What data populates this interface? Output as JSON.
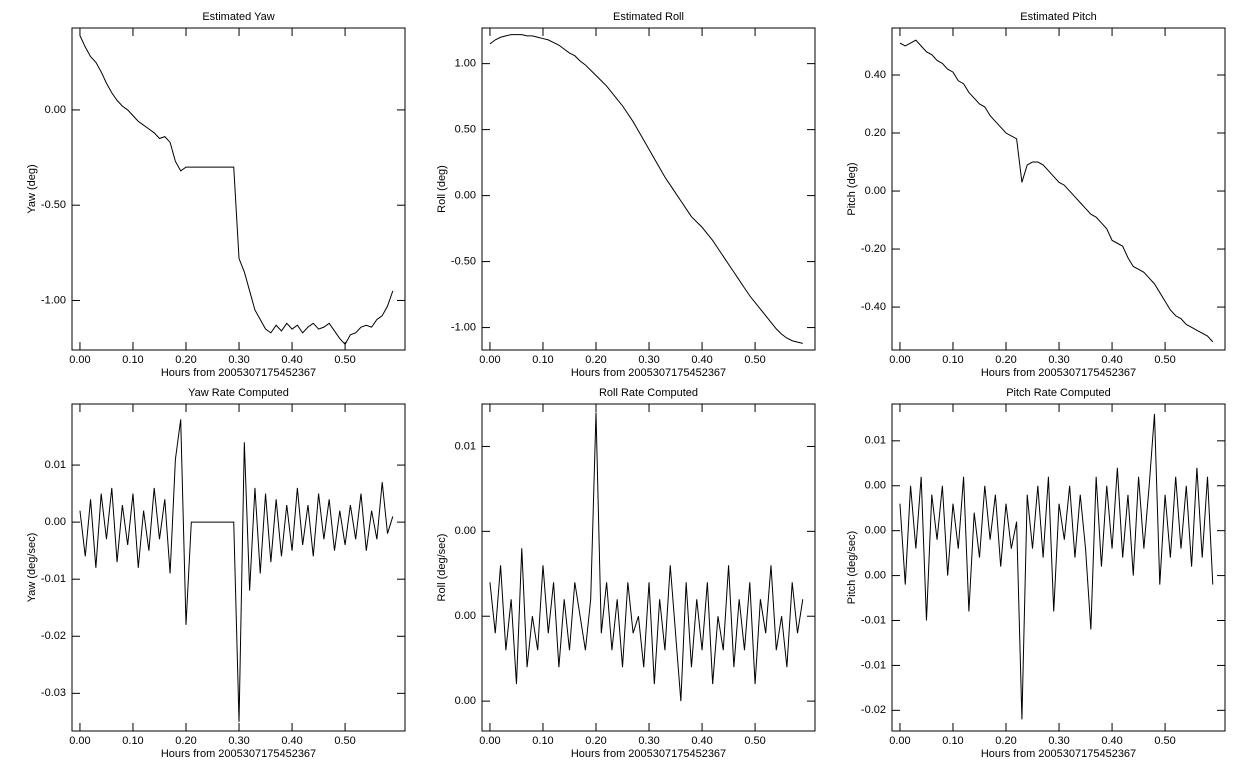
{
  "chart_data": [
    {
      "type": "line",
      "title": "Estimated Yaw",
      "x_label": "Hours from 2005307175452367",
      "y_label": "Yaw (deg)",
      "color": "#000000",
      "xlim": [
        -0.015,
        0.613
      ],
      "ylim": [
        -1.26,
        0.43
      ],
      "xticks": [
        {
          "value": 0,
          "label": "0.00"
        },
        {
          "value": 0.1,
          "label": "0.10"
        },
        {
          "value": 0.2,
          "label": "0.20"
        },
        {
          "value": 0.3,
          "label": "0.30"
        },
        {
          "value": 0.4,
          "label": "0.40"
        },
        {
          "value": 0.5,
          "label": "0.50"
        }
      ],
      "yticks": [
        {
          "value": 0,
          "label": "0.00"
        },
        {
          "value": -0.5,
          "label": "-0.50"
        },
        {
          "value": -1,
          "label": "-1.00"
        }
      ],
      "x": [
        0,
        0.01,
        0.02,
        0.03,
        0.04,
        0.05,
        0.06,
        0.07,
        0.08,
        0.09,
        0.1,
        0.11,
        0.12,
        0.13,
        0.14,
        0.15,
        0.16,
        0.17,
        0.18,
        0.19,
        0.2,
        0.21,
        0.22,
        0.23,
        0.24,
        0.25,
        0.26,
        0.27,
        0.28,
        0.29,
        0.3,
        0.31,
        0.32,
        0.33,
        0.34,
        0.35,
        0.36,
        0.37,
        0.38,
        0.39,
        0.4,
        0.41,
        0.42,
        0.43,
        0.44,
        0.45,
        0.46,
        0.47,
        0.48,
        0.49,
        0.5,
        0.51,
        0.52,
        0.53,
        0.54,
        0.55,
        0.56,
        0.57,
        0.58,
        0.59
      ],
      "values": [
        0.39,
        0.33,
        0.28,
        0.25,
        0.2,
        0.14,
        0.09,
        0.05,
        0.02,
        0.0,
        -0.03,
        -0.06,
        -0.08,
        -0.1,
        -0.12,
        -0.15,
        -0.14,
        -0.17,
        -0.27,
        -0.32,
        -0.3,
        -0.3,
        -0.3,
        -0.3,
        -0.3,
        -0.3,
        -0.3,
        -0.3,
        -0.3,
        -0.3,
        -0.78,
        -0.85,
        -0.95,
        -1.05,
        -1.1,
        -1.15,
        -1.17,
        -1.13,
        -1.16,
        -1.12,
        -1.15,
        -1.13,
        -1.17,
        -1.14,
        -1.12,
        -1.15,
        -1.14,
        -1.12,
        -1.16,
        -1.2,
        -1.23,
        -1.18,
        -1.17,
        -1.14,
        -1.13,
        -1.14,
        -1.1,
        -1.08,
        -1.03,
        -0.95
      ]
    },
    {
      "type": "line",
      "title": "Estimated Roll",
      "x_label": "Hours from 2005307175452367",
      "y_label": "Roll (deg)",
      "color": "#000000",
      "xlim": [
        -0.015,
        0.613
      ],
      "ylim": [
        -1.17,
        1.27
      ],
      "xticks": [
        {
          "value": 0,
          "label": "0.00"
        },
        {
          "value": 0.1,
          "label": "0.10"
        },
        {
          "value": 0.2,
          "label": "0.20"
        },
        {
          "value": 0.3,
          "label": "0.30"
        },
        {
          "value": 0.4,
          "label": "0.40"
        },
        {
          "value": 0.5,
          "label": "0.50"
        }
      ],
      "yticks": [
        {
          "value": 1,
          "label": "1.00"
        },
        {
          "value": 0.5,
          "label": "0.50"
        },
        {
          "value": 0,
          "label": "0.00"
        },
        {
          "value": -0.5,
          "label": "-0.50"
        },
        {
          "value": -1,
          "label": "-1.00"
        }
      ],
      "x": [
        0,
        0.01,
        0.02,
        0.03,
        0.04,
        0.05,
        0.06,
        0.07,
        0.08,
        0.09,
        0.1,
        0.11,
        0.12,
        0.13,
        0.14,
        0.15,
        0.16,
        0.17,
        0.18,
        0.19,
        0.2,
        0.21,
        0.22,
        0.23,
        0.24,
        0.25,
        0.26,
        0.27,
        0.28,
        0.29,
        0.3,
        0.31,
        0.32,
        0.33,
        0.34,
        0.35,
        0.36,
        0.37,
        0.38,
        0.39,
        0.4,
        0.41,
        0.42,
        0.43,
        0.44,
        0.45,
        0.46,
        0.47,
        0.48,
        0.49,
        0.5,
        0.51,
        0.52,
        0.53,
        0.54,
        0.55,
        0.56,
        0.57,
        0.58,
        0.59
      ],
      "values": [
        1.15,
        1.18,
        1.2,
        1.21,
        1.22,
        1.22,
        1.22,
        1.21,
        1.21,
        1.2,
        1.19,
        1.18,
        1.16,
        1.14,
        1.11,
        1.08,
        1.06,
        1.02,
        0.99,
        0.95,
        0.91,
        0.87,
        0.83,
        0.78,
        0.73,
        0.68,
        0.62,
        0.56,
        0.49,
        0.42,
        0.35,
        0.28,
        0.21,
        0.14,
        0.08,
        0.02,
        -0.04,
        -0.1,
        -0.16,
        -0.2,
        -0.24,
        -0.29,
        -0.34,
        -0.4,
        -0.46,
        -0.52,
        -0.58,
        -0.64,
        -0.7,
        -0.76,
        -0.81,
        -0.86,
        -0.91,
        -0.96,
        -1.01,
        -1.05,
        -1.08,
        -1.1,
        -1.11,
        -1.12
      ]
    },
    {
      "type": "line",
      "title": "Estimated Pitch",
      "x_label": "Hours from 2005307175452367",
      "y_label": "Pitch (deg)",
      "color": "#000000",
      "xlim": [
        -0.015,
        0.613
      ],
      "ylim": [
        -0.548,
        0.562
      ],
      "xticks": [
        {
          "value": 0,
          "label": "0.00"
        },
        {
          "value": 0.1,
          "label": "0.10"
        },
        {
          "value": 0.2,
          "label": "0.20"
        },
        {
          "value": 0.3,
          "label": "0.30"
        },
        {
          "value": 0.4,
          "label": "0.40"
        },
        {
          "value": 0.5,
          "label": "0.50"
        }
      ],
      "yticks": [
        {
          "value": 0.4,
          "label": "0.40"
        },
        {
          "value": 0.2,
          "label": "0.20"
        },
        {
          "value": 0,
          "label": "0.00"
        },
        {
          "value": -0.2,
          "label": "-0.20"
        },
        {
          "value": -0.4,
          "label": "-0.40"
        }
      ],
      "x": [
        0,
        0.01,
        0.02,
        0.03,
        0.04,
        0.05,
        0.06,
        0.07,
        0.08,
        0.09,
        0.1,
        0.11,
        0.12,
        0.13,
        0.14,
        0.15,
        0.16,
        0.17,
        0.18,
        0.19,
        0.2,
        0.21,
        0.22,
        0.23,
        0.24,
        0.25,
        0.26,
        0.27,
        0.28,
        0.29,
        0.3,
        0.31,
        0.32,
        0.33,
        0.34,
        0.35,
        0.36,
        0.37,
        0.38,
        0.39,
        0.4,
        0.41,
        0.42,
        0.43,
        0.44,
        0.45,
        0.46,
        0.47,
        0.48,
        0.49,
        0.5,
        0.51,
        0.52,
        0.53,
        0.54,
        0.55,
        0.56,
        0.57,
        0.58,
        0.59
      ],
      "values": [
        0.51,
        0.5,
        0.51,
        0.52,
        0.5,
        0.48,
        0.47,
        0.45,
        0.44,
        0.42,
        0.41,
        0.38,
        0.37,
        0.34,
        0.32,
        0.3,
        0.29,
        0.26,
        0.24,
        0.22,
        0.2,
        0.19,
        0.18,
        0.03,
        0.09,
        0.1,
        0.1,
        0.09,
        0.07,
        0.05,
        0.03,
        0.02,
        0.0,
        -0.02,
        -0.04,
        -0.06,
        -0.08,
        -0.09,
        -0.11,
        -0.13,
        -0.17,
        -0.18,
        -0.19,
        -0.23,
        -0.26,
        -0.27,
        -0.28,
        -0.3,
        -0.32,
        -0.35,
        -0.38,
        -0.41,
        -0.43,
        -0.44,
        -0.46,
        -0.47,
        -0.48,
        -0.49,
        -0.5,
        -0.52
      ]
    },
    {
      "type": "line",
      "title": "Yaw Rate Computed",
      "x_label": "Hours from 2005307175452367",
      "y_label": "Yaw (deg/sec)",
      "color": "#000000",
      "xlim": [
        -0.015,
        0.613
      ],
      "ylim": [
        -0.0366,
        0.0207
      ],
      "xticks": [
        {
          "value": 0,
          "label": "0.00"
        },
        {
          "value": 0.1,
          "label": "0.10"
        },
        {
          "value": 0.2,
          "label": "0.20"
        },
        {
          "value": 0.3,
          "label": "0.30"
        },
        {
          "value": 0.4,
          "label": "0.40"
        },
        {
          "value": 0.5,
          "label": "0.50"
        }
      ],
      "yticks": [
        0.01,
        {
          "value": 0,
          "label": "0.00"
        },
        -0.01,
        -0.02,
        -0.03
      ],
      "x": [
        0,
        0.01,
        0.02,
        0.03,
        0.04,
        0.05,
        0.06,
        0.07,
        0.08,
        0.09,
        0.1,
        0.11,
        0.12,
        0.13,
        0.14,
        0.15,
        0.16,
        0.17,
        0.18,
        0.19,
        0.2,
        0.21,
        0.22,
        0.23,
        0.24,
        0.25,
        0.26,
        0.27,
        0.28,
        0.29,
        0.3,
        0.31,
        0.32,
        0.33,
        0.34,
        0.35,
        0.36,
        0.37,
        0.38,
        0.39,
        0.4,
        0.41,
        0.42,
        0.43,
        0.44,
        0.45,
        0.46,
        0.47,
        0.48,
        0.49,
        0.5,
        0.51,
        0.52,
        0.53,
        0.54,
        0.55,
        0.56,
        0.57,
        0.58,
        0.59
      ],
      "values": [
        0.002,
        -0.006,
        0.004,
        -0.008,
        0.005,
        -0.003,
        0.006,
        -0.007,
        0.003,
        -0.004,
        0.005,
        -0.008,
        0.002,
        -0.005,
        0.006,
        -0.003,
        0.004,
        -0.009,
        0.011,
        0.018,
        -0.018,
        0,
        0,
        0,
        0,
        0,
        0,
        0,
        0,
        0,
        -0.035,
        0.014,
        -0.012,
        0.006,
        -0.009,
        0.005,
        -0.007,
        0.004,
        -0.006,
        0.003,
        -0.005,
        0.006,
        -0.004,
        0.003,
        -0.006,
        0.005,
        -0.003,
        0.004,
        -0.005,
        0.002,
        -0.004,
        0.003,
        -0.003,
        0.005,
        -0.005,
        0.002,
        -0.003,
        0.007,
        -0.002,
        0.001
      ]
    },
    {
      "type": "line",
      "title": "Roll Rate Computed",
      "x_label": "Hours from 2005307175452367",
      "y_label": "Roll (deg/sec)",
      "color": "#000000",
      "xlim": [
        -0.015,
        0.613
      ],
      "ylim": [
        -0.00676,
        0.0125
      ],
      "xticks": [
        {
          "value": 0,
          "label": "0.00"
        },
        {
          "value": 0.1,
          "label": "0.10"
        },
        {
          "value": 0.2,
          "label": "0.20"
        },
        {
          "value": 0.3,
          "label": "0.30"
        },
        {
          "value": 0.4,
          "label": "0.40"
        },
        {
          "value": 0.5,
          "label": "0.50"
        }
      ],
      "yticks": [
        0.01,
        {
          "value": 0.005,
          "label": "0.00"
        },
        {
          "value": 0,
          "label": "0.00"
        },
        {
          "value": -0.005,
          "label": "0.00"
        }
      ],
      "x": [
        0,
        0.01,
        0.02,
        0.03,
        0.04,
        0.05,
        0.06,
        0.07,
        0.08,
        0.09,
        0.1,
        0.11,
        0.12,
        0.13,
        0.14,
        0.15,
        0.16,
        0.17,
        0.18,
        0.19,
        0.2,
        0.21,
        0.22,
        0.23,
        0.24,
        0.25,
        0.26,
        0.27,
        0.28,
        0.29,
        0.3,
        0.31,
        0.32,
        0.33,
        0.34,
        0.35,
        0.36,
        0.37,
        0.38,
        0.39,
        0.4,
        0.41,
        0.42,
        0.43,
        0.44,
        0.45,
        0.46,
        0.47,
        0.48,
        0.49,
        0.5,
        0.51,
        0.52,
        0.53,
        0.54,
        0.55,
        0.56,
        0.57,
        0.58,
        0.59
      ],
      "values": [
        0.002,
        -0.001,
        0.003,
        -0.002,
        0.001,
        -0.004,
        0.004,
        -0.003,
        0.0,
        -0.002,
        0.003,
        -0.001,
        0.002,
        -0.003,
        0.001,
        -0.002,
        0.002,
        0.0,
        -0.002,
        0.001,
        0.012,
        -0.001,
        0.002,
        -0.002,
        0.001,
        -0.003,
        0.002,
        -0.001,
        0.0,
        -0.003,
        0.002,
        -0.004,
        0.001,
        -0.002,
        0.003,
        -0.001,
        -0.005,
        0.002,
        -0.003,
        0.001,
        -0.002,
        0.002,
        -0.004,
        0.0,
        -0.002,
        0.003,
        -0.003,
        0.001,
        -0.002,
        0.002,
        -0.004,
        0.001,
        -0.001,
        0.003,
        -0.002,
        0.0,
        -0.003,
        0.002,
        -0.001,
        0.001
      ]
    },
    {
      "type": "line",
      "title": "Pitch Rate Computed",
      "x_label": "Hours from 2005307175452367",
      "y_label": "Pitch (deg/sec)",
      "color": "#000000",
      "xlim": [
        -0.015,
        0.613
      ],
      "ylim": [
        -0.0223,
        0.0141
      ],
      "xticks": [
        {
          "value": 0,
          "label": "0.00"
        },
        {
          "value": 0.1,
          "label": "0.10"
        },
        {
          "value": 0.2,
          "label": "0.20"
        },
        {
          "value": 0.3,
          "label": "0.30"
        },
        {
          "value": 0.4,
          "label": "0.40"
        },
        {
          "value": 0.5,
          "label": "0.50"
        }
      ],
      "yticks": [
        0.01,
        {
          "value": 0.005,
          "label": "0.00"
        },
        {
          "value": 0,
          "label": "0.00"
        },
        {
          "value": -0.005,
          "label": "0.00"
        },
        -0.01,
        {
          "value": -0.015,
          "label": "-0.01"
        },
        -0.02
      ],
      "x": [
        0,
        0.01,
        0.02,
        0.03,
        0.04,
        0.05,
        0.06,
        0.07,
        0.08,
        0.09,
        0.1,
        0.11,
        0.12,
        0.13,
        0.14,
        0.15,
        0.16,
        0.17,
        0.18,
        0.19,
        0.2,
        0.21,
        0.22,
        0.23,
        0.24,
        0.25,
        0.26,
        0.27,
        0.28,
        0.29,
        0.3,
        0.31,
        0.32,
        0.33,
        0.34,
        0.35,
        0.36,
        0.37,
        0.38,
        0.39,
        0.4,
        0.41,
        0.42,
        0.43,
        0.44,
        0.45,
        0.46,
        0.47,
        0.48,
        0.49,
        0.5,
        0.51,
        0.52,
        0.53,
        0.54,
        0.55,
        0.56,
        0.57,
        0.58,
        0.59
      ],
      "values": [
        0.003,
        -0.006,
        0.005,
        -0.002,
        0.006,
        -0.01,
        0.004,
        -0.001,
        0.005,
        -0.005,
        0.003,
        -0.002,
        0.006,
        -0.009,
        0.002,
        -0.003,
        0.005,
        -0.001,
        0.004,
        -0.004,
        0.003,
        -0.002,
        0.001,
        -0.021,
        0.004,
        -0.002,
        0.005,
        -0.003,
        0.006,
        -0.009,
        0.003,
        -0.001,
        0.005,
        -0.003,
        0.004,
        -0.002,
        -0.011,
        0.006,
        -0.004,
        0.005,
        -0.002,
        0.007,
        -0.003,
        0.004,
        -0.005,
        0.006,
        -0.002,
        0.005,
        0.013,
        -0.006,
        0.004,
        -0.003,
        0.006,
        -0.002,
        0.005,
        -0.004,
        0.007,
        -0.003,
        0.006,
        -0.006
      ]
    }
  ]
}
